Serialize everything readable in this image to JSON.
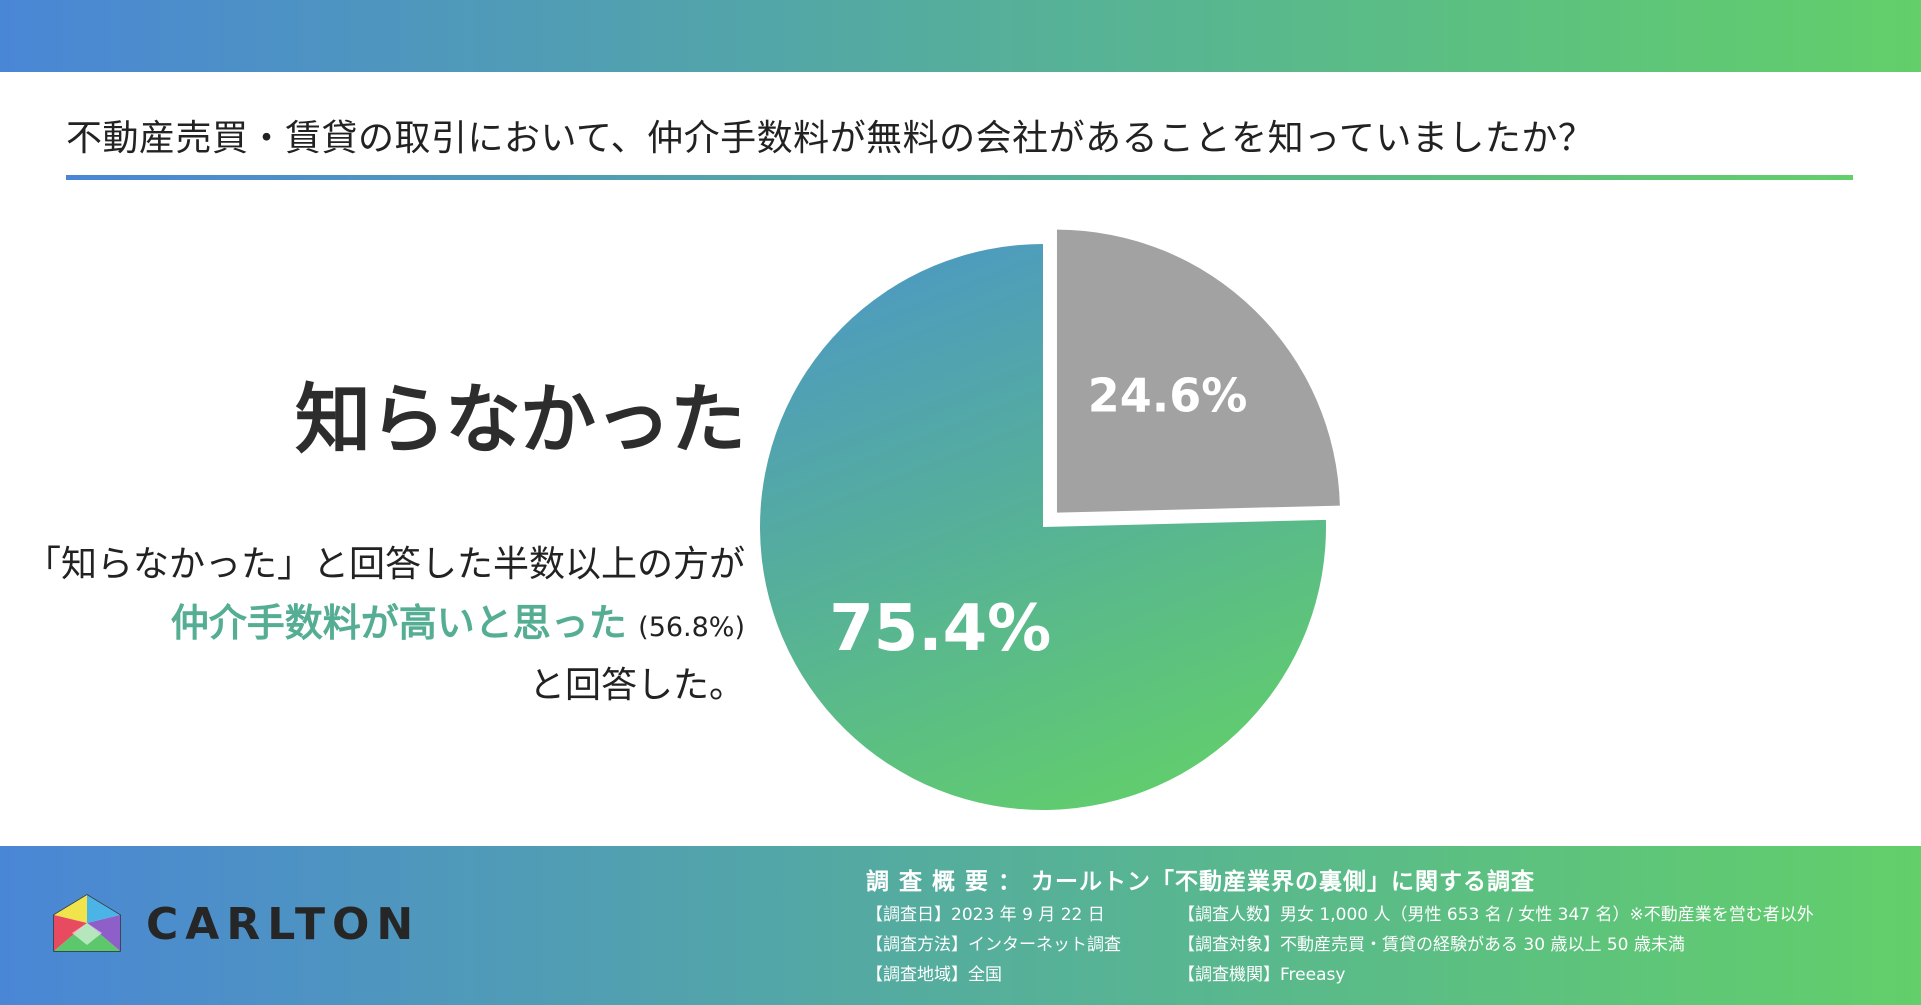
{
  "header": {
    "question": "不動産売買・賃貸の取引において、仲介手数料が無料の会社があることを知っていましたか？"
  },
  "headline": "知らなかった",
  "description": {
    "line1": "「知らなかった」と回答した半数以上の方が",
    "highlight": "仲介手数料が高いと思った",
    "highlight_pct": "(56.8%)",
    "line3": "と回答した。"
  },
  "chart_data": {
    "type": "pie",
    "slices": [
      {
        "label": "24.6%",
        "value": 24.6,
        "color": "#a2a2a2",
        "exploded": true
      },
      {
        "label": "75.4%",
        "value": 75.4,
        "color_start": "#4e9bbf",
        "color_mid": "#55ae9c",
        "color_end": "#62cf6a"
      }
    ]
  },
  "footer": {
    "brand": "CARLTON",
    "survey_title": "調 査 概 要 ： カールトン「不動産業界の裏側」に関する調査",
    "date": "【調査日】2023 年 9 月 22 日",
    "method": "【調査方法】インターネット調査",
    "region": "【調査地域】全国",
    "respondents": "【調査人数】男女 1,000 人（男性 653 名 / 女性 347 名）※不動産業を営む者以外",
    "target": "【調査対象】不動産売買・賃貸の経験がある 30 歳以上 50 歳未満",
    "agency": "【調査機関】Freeasy"
  }
}
